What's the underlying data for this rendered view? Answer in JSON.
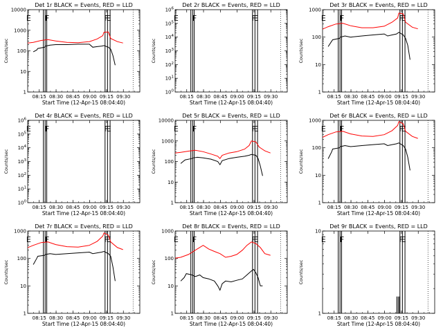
{
  "colors": {
    "events": "#000000",
    "lld": "#ff0000",
    "background": "#ffffff"
  },
  "xaxis": {
    "label": "Start Time (12-Apr-15 08:04:40)",
    "ticks": [
      "08:15",
      "08:30",
      "08:45",
      "09:00",
      "09:15",
      "09:30"
    ],
    "tick_minutes": [
      10.33,
      25.33,
      40.33,
      55.33,
      70.33,
      85.33
    ],
    "range_min": [
      0,
      100
    ]
  },
  "ylabel": "Counts/sec",
  "markers": {
    "E": {
      "label": "E",
      "min": 0.8
    },
    "F1": {
      "label": "F",
      "min": 17.3
    },
    "F2": {
      "label": "F",
      "min": 70.2
    },
    "E2": {
      "label": "E",
      "min": 72.3
    }
  },
  "boxlines_min": [
    14.0,
    15.6,
    17.0,
    69.0,
    71.2,
    73.5
  ],
  "chart_data": [
    {
      "type": "line",
      "title": "Det 1r BLACK = Events, RED = LLD",
      "ylog": true,
      "ylim": [
        1,
        10000
      ],
      "yticks": [
        "1",
        "10",
        "100",
        "1000",
        "10000"
      ],
      "ytick_values": [
        1,
        10,
        100,
        1000,
        10000
      ],
      "series": [
        {
          "color": "red",
          "x": [
            -2,
            5,
            12,
            18,
            25,
            35,
            45,
            55,
            62,
            67,
            68,
            72,
            74,
            80,
            85
          ],
          "y": [
            230,
            260,
            320,
            350,
            300,
            260,
            250,
            280,
            380,
            550,
            800,
            820,
            400,
            280,
            240
          ]
        },
        {
          "color": "black",
          "x": [
            5,
            8,
            9,
            15,
            16,
            20,
            25,
            35,
            45,
            55,
            58,
            62,
            66,
            68,
            72,
            74,
            76,
            78
          ],
          "y": [
            90,
            110,
            130,
            150,
            170,
            190,
            200,
            200,
            210,
            210,
            150,
            160,
            170,
            180,
            150,
            120,
            60,
            20
          ]
        }
      ]
    },
    {
      "type": "line",
      "title": "Det 2r BLACK = Events, RED = LLD",
      "ylog": true,
      "ylim": [
        1,
        1000000
      ],
      "yticks": [
        "10^0",
        "10^1",
        "10^2",
        "10^3",
        "10^4",
        "10^5",
        "10^6"
      ],
      "ytick_values": [
        1,
        10,
        100,
        1000,
        10000,
        100000,
        1000000
      ],
      "series": []
    },
    {
      "type": "line",
      "title": "Det 3r BLACK = Events, RED = LLD",
      "ylog": true,
      "ylim": [
        1,
        1000
      ],
      "yticks": [
        "1",
        "10",
        "100",
        "1000"
      ],
      "ytick_values": [
        1,
        10,
        100,
        1000
      ],
      "series": [
        {
          "color": "red",
          "x": [
            -2,
            5,
            12,
            18,
            25,
            35,
            45,
            55,
            62,
            67,
            68,
            72,
            74,
            80,
            85
          ],
          "y": [
            180,
            240,
            300,
            320,
            260,
            220,
            220,
            250,
            350,
            500,
            750,
            700,
            350,
            230,
            200
          ]
        },
        {
          "color": "black",
          "x": [
            5,
            8,
            9,
            15,
            16,
            20,
            25,
            35,
            45,
            55,
            58,
            62,
            66,
            68,
            72,
            74,
            76,
            78
          ],
          "y": [
            45,
            70,
            80,
            90,
            100,
            110,
            100,
            110,
            120,
            130,
            110,
            120,
            130,
            150,
            120,
            90,
            50,
            15
          ]
        }
      ]
    },
    {
      "type": "line",
      "title": "Det 4r BLACK = Events, RED = LLD",
      "ylog": true,
      "ylim": [
        1,
        1000000
      ],
      "yticks": [
        "10^0",
        "10^1",
        "10^2",
        "10^3",
        "10^4",
        "10^5",
        "10^6"
      ],
      "ytick_values": [
        1,
        10,
        100,
        1000,
        10000,
        100000,
        1000000
      ],
      "series": []
    },
    {
      "type": "line",
      "title": "Det 5r BLACK = Events, RED = LLD",
      "ylog": true,
      "ylim": [
        1,
        10000
      ],
      "yticks": [
        "1",
        "10",
        "100",
        "1000",
        "10000"
      ],
      "ytick_values": [
        1,
        10,
        100,
        1000,
        10000
      ],
      "series": [
        {
          "color": "red",
          "x": [
            -2,
            5,
            12,
            18,
            25,
            32,
            38,
            40,
            42,
            48,
            55,
            62,
            66,
            68,
            72,
            75,
            80,
            85
          ],
          "y": [
            250,
            280,
            320,
            350,
            300,
            230,
            180,
            140,
            200,
            260,
            300,
            400,
            600,
            1000,
            900,
            500,
            330,
            260
          ]
        },
        {
          "color": "black",
          "x": [
            5,
            8,
            9,
            15,
            16,
            20,
            25,
            32,
            38,
            40,
            42,
            48,
            55,
            62,
            66,
            68,
            72,
            74,
            76,
            78
          ],
          "y": [
            80,
            110,
            120,
            140,
            150,
            160,
            150,
            130,
            100,
            70,
            110,
            140,
            160,
            180,
            200,
            220,
            200,
            140,
            60,
            20
          ]
        }
      ]
    },
    {
      "type": "line",
      "title": "Det 6r BLACK = Events, RED = LLD",
      "ylog": true,
      "ylim": [
        1,
        1000
      ],
      "yticks": [
        "1",
        "10",
        "100",
        "1000"
      ],
      "ytick_values": [
        1,
        10,
        100,
        1000
      ],
      "series": [
        {
          "color": "red",
          "x": [
            -2,
            5,
            12,
            18,
            25,
            35,
            45,
            55,
            62,
            67,
            68,
            72,
            74,
            80,
            85
          ],
          "y": [
            220,
            300,
            380,
            400,
            320,
            270,
            260,
            300,
            420,
            650,
            900,
            750,
            400,
            260,
            220
          ]
        },
        {
          "color": "black",
          "x": [
            5,
            8,
            9,
            15,
            16,
            20,
            25,
            35,
            45,
            55,
            58,
            62,
            66,
            68,
            72,
            74,
            76,
            78
          ],
          "y": [
            40,
            70,
            90,
            100,
            110,
            120,
            110,
            120,
            130,
            140,
            120,
            130,
            140,
            150,
            120,
            90,
            45,
            15
          ]
        }
      ]
    },
    {
      "type": "line",
      "title": "Det 7r BLACK = Events, RED = LLD",
      "ylog": true,
      "ylim": [
        1,
        1000
      ],
      "yticks": [
        "1",
        "10",
        "100",
        "1000"
      ],
      "ytick_values": [
        1,
        10,
        100,
        1000
      ],
      "series": [
        {
          "color": "red",
          "x": [
            -2,
            5,
            12,
            18,
            25,
            35,
            45,
            55,
            62,
            67,
            68,
            72,
            74,
            80,
            85
          ],
          "y": [
            230,
            300,
            380,
            400,
            320,
            270,
            260,
            300,
            420,
            650,
            850,
            700,
            400,
            250,
            210
          ]
        },
        {
          "color": "black",
          "x": [
            5,
            8,
            9,
            15,
            16,
            20,
            25,
            35,
            45,
            55,
            58,
            62,
            66,
            68,
            72,
            74,
            76,
            78
          ],
          "y": [
            60,
            100,
            120,
            130,
            140,
            150,
            140,
            150,
            160,
            170,
            150,
            160,
            170,
            180,
            150,
            120,
            50,
            15
          ]
        }
      ]
    },
    {
      "type": "line",
      "title": "Det 8r BLACK = Events, RED = LLD",
      "ylog": true,
      "ylim": [
        1,
        1000
      ],
      "yticks": [
        "1",
        "10",
        "100",
        "1000"
      ],
      "ytick_values": [
        1,
        10,
        100,
        1000
      ],
      "series": [
        {
          "color": "red",
          "x": [
            -2,
            5,
            12,
            18,
            25,
            30,
            35,
            40,
            45,
            50,
            55,
            60,
            64,
            68,
            72,
            76,
            80,
            85
          ],
          "y": [
            100,
            110,
            140,
            200,
            300,
            220,
            180,
            150,
            110,
            120,
            140,
            200,
            300,
            400,
            350,
            250,
            150,
            130
          ]
        },
        {
          "color": "black",
          "x": [
            5,
            8,
            10,
            15,
            18,
            22,
            25,
            30,
            35,
            38,
            40,
            42,
            45,
            50,
            55,
            60,
            64,
            68,
            70,
            72,
            74,
            76,
            78
          ],
          "y": [
            15,
            20,
            28,
            25,
            22,
            25,
            20,
            18,
            15,
            10,
            7,
            12,
            15,
            14,
            16,
            18,
            25,
            35,
            40,
            30,
            20,
            10,
            10
          ]
        }
      ]
    },
    {
      "type": "line",
      "title": "Det 9r BLACK = Events, RED = LLD",
      "ylog": true,
      "ylim": [
        1,
        10
      ],
      "yticks": [
        "1",
        "10"
      ],
      "ytick_values": [
        1,
        10
      ],
      "series": [
        {
          "color": "black",
          "x": [],
          "y": []
        }
      ],
      "spikes_min": [
        66.2,
        67.4,
        68.5
      ]
    }
  ]
}
